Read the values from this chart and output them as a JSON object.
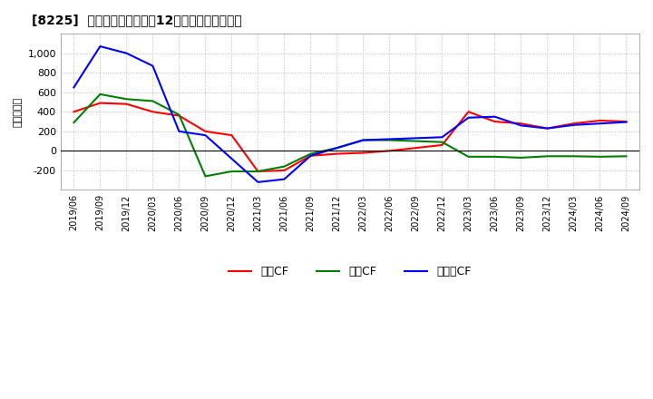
{
  "title": "[8225]  キャッシュフローの12か月移動合計の推移",
  "ylabel": "（百万円）",
  "x_labels": [
    "2019/06",
    "2019/09",
    "2019/12",
    "2020/03",
    "2020/06",
    "2020/09",
    "2020/12",
    "2021/03",
    "2021/06",
    "2021/09",
    "2021/12",
    "2022/03",
    "2022/06",
    "2022/09",
    "2022/12",
    "2023/03",
    "2023/06",
    "2023/09",
    "2023/12",
    "2024/03",
    "2024/06",
    "2024/09"
  ],
  "operating_cf": [
    400,
    490,
    480,
    400,
    360,
    200,
    160,
    -210,
    -200,
    -50,
    -30,
    -20,
    0,
    30,
    60,
    400,
    300,
    280,
    230,
    280,
    310,
    300
  ],
  "investing_cf": [
    290,
    580,
    530,
    510,
    370,
    -260,
    -210,
    -210,
    -160,
    -30,
    30,
    110,
    110,
    100,
    90,
    -60,
    -60,
    -70,
    -55,
    -55,
    -60,
    -55
  ],
  "free_cf": [
    650,
    1070,
    1000,
    870,
    200,
    160,
    -80,
    -320,
    -290,
    -50,
    30,
    110,
    120,
    130,
    140,
    340,
    350,
    260,
    230,
    265,
    280,
    295
  ],
  "operating_color": "#ff0000",
  "investing_color": "#008000",
  "free_cf_color": "#0000ff",
  "background_color": "#ffffff",
  "plot_bg_color": "#ffffff",
  "grid_color": "#bbbbbb",
  "ylim": [
    -400,
    1200
  ],
  "yticks": [
    -200,
    0,
    200,
    400,
    600,
    800,
    1000
  ],
  "legend_labels": [
    "営業CF",
    "投資CF",
    "フリーCF"
  ]
}
